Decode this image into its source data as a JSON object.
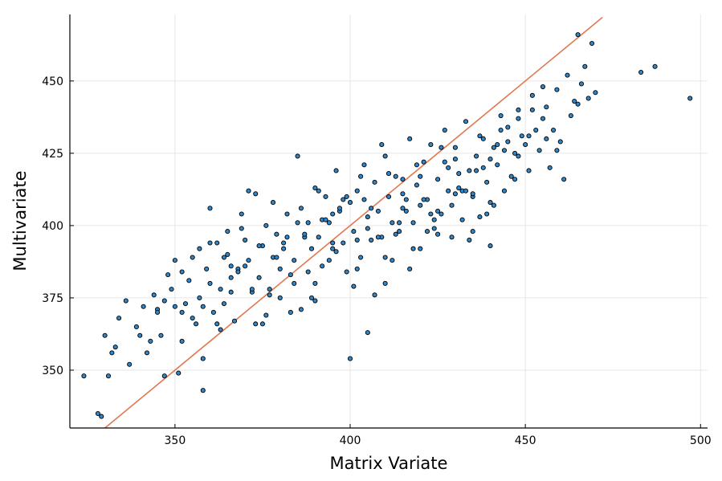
{
  "chart_data": {
    "type": "scatter",
    "title": "",
    "xlabel": "Matrix Variate",
    "ylabel": "Multivariate",
    "xlim": [
      320,
      502
    ],
    "ylim": [
      330,
      473
    ],
    "xticks": [
      350,
      400,
      450,
      500
    ],
    "yticks": [
      350,
      375,
      400,
      425,
      450
    ],
    "grid": true,
    "legend": "none",
    "colors": {
      "points": "#2f86c8",
      "point_edge": "#000000",
      "line": "#e2784f"
    },
    "fit_line": {
      "x": [
        330,
        472
      ],
      "y": [
        330,
        472
      ]
    },
    "series": [
      {
        "x": [
          324,
          328,
          330,
          331,
          332,
          333,
          334,
          329,
          336,
          337,
          339,
          341,
          342,
          343,
          344,
          345,
          346,
          347,
          347,
          348,
          349,
          350,
          351,
          352,
          352,
          353,
          354,
          355,
          356,
          357,
          357,
          358,
          358,
          359,
          360,
          361,
          362,
          363,
          363,
          364,
          364,
          365,
          366,
          367,
          368,
          369,
          370,
          371,
          372,
          373,
          374,
          375,
          376,
          377,
          378,
          379,
          380,
          381,
          382,
          383,
          384,
          385,
          386,
          387,
          388,
          389,
          390,
          391,
          392,
          393,
          394,
          395,
          396,
          397,
          398,
          399,
          400,
          401,
          402,
          403,
          404,
          405,
          406,
          407,
          408,
          409,
          410,
          411,
          412,
          413,
          414,
          415,
          416,
          417,
          418,
          419,
          420,
          421,
          422,
          423,
          424,
          425,
          426,
          427,
          428,
          429,
          430,
          431,
          432,
          433,
          434,
          435,
          436,
          437,
          438,
          439,
          440,
          441,
          442,
          443,
          444,
          445,
          446,
          447,
          448,
          449,
          450,
          451,
          452,
          453,
          454,
          455,
          456,
          457,
          458,
          459,
          460,
          461,
          462,
          463,
          464,
          465,
          466,
          467,
          468,
          469,
          470,
          483,
          487,
          497,
          350,
          355,
          360,
          365,
          370,
          375,
          380,
          385,
          390,
          395,
          400,
          405,
          410,
          415,
          420,
          425,
          430,
          435,
          440,
          445,
          360,
          368,
          372,
          378,
          382,
          388,
          392,
          396,
          402,
          406,
          412,
          416,
          422,
          428,
          432,
          438,
          442,
          448,
          452,
          456,
          340,
          345,
          352,
          358,
          362,
          366,
          374,
          379,
          384,
          389,
          393,
          397,
          401,
          404,
          408,
          411,
          414,
          418,
          421,
          424,
          427,
          431,
          434,
          437,
          441,
          444,
          447,
          451,
          455,
          459,
          371,
          376,
          381,
          386,
          391,
          394,
          398,
          403,
          407,
          409,
          413,
          417,
          419,
          423,
          426,
          429,
          433,
          436,
          439,
          443,
          366,
          369,
          373,
          377,
          383,
          387,
          390,
          395,
          399,
          402,
          405,
          410,
          415,
          420,
          425,
          430,
          435,
          440,
          448,
          465
        ],
        "y": [
          348,
          335,
          362,
          348,
          356,
          358,
          368,
          334,
          374,
          352,
          365,
          372,
          356,
          360,
          376,
          371,
          362,
          374,
          348,
          383,
          378,
          388,
          349,
          384,
          370,
          373,
          381,
          389,
          366,
          392,
          375,
          354,
          343,
          385,
          406,
          370,
          394,
          378,
          364,
          389,
          373,
          398,
          382,
          367,
          385,
          404,
          395,
          388,
          377,
          411,
          382,
          393,
          400,
          376,
          408,
          397,
          385,
          392,
          404,
          370,
          388,
          424,
          406,
          396,
          401,
          375,
          413,
          396,
          386,
          410,
          401,
          392,
          419,
          405,
          394,
          384,
          408,
          398,
          412,
          389,
          421,
          403,
          395,
          415,
          405,
          396,
          424,
          410,
          388,
          417,
          398,
          411,
          405,
          430,
          401,
          414,
          392,
          422,
          409,
          428,
          399,
          416,
          404,
          433,
          412,
          396,
          427,
          418,
          402,
          436,
          419,
          410,
          424,
          403,
          430,
          415,
          408,
          427,
          421,
          438,
          412,
          434,
          417,
          425,
          440,
          431,
          428,
          419,
          445,
          433,
          426,
          437,
          441,
          420,
          433,
          447,
          429,
          416,
          452,
          438,
          443,
          466,
          449,
          455,
          444,
          463,
          446,
          453,
          455,
          444,
          372,
          368,
          380,
          390,
          386,
          366,
          375,
          401,
          380,
          394,
          354,
          399,
          389,
          416,
          407,
          405,
          411,
          398,
          423,
          429,
          394,
          384,
          378,
          389,
          396,
          384,
          402,
          391,
          395,
          406,
          401,
          409,
          398,
          420,
          412,
          420,
          428,
          437,
          440,
          430,
          362,
          370,
          360,
          372,
          366,
          377,
          393,
          389,
          380,
          392,
          402,
          406,
          379,
          409,
          396,
          418,
          401,
          392,
          409,
          402,
          422,
          413,
          395,
          431,
          407,
          426,
          416,
          431,
          448,
          426,
          412,
          369,
          394,
          371,
          412,
          388,
          409,
          417,
          376,
          428,
          397,
          385,
          421,
          404,
          427,
          407,
          412,
          419,
          404,
          433,
          386,
          399,
          366,
          378,
          383,
          397,
          374,
          404,
          410,
          385,
          363,
          380,
          406,
          417,
          397,
          423,
          411,
          393,
          424,
          442
        ]
      }
    ]
  }
}
